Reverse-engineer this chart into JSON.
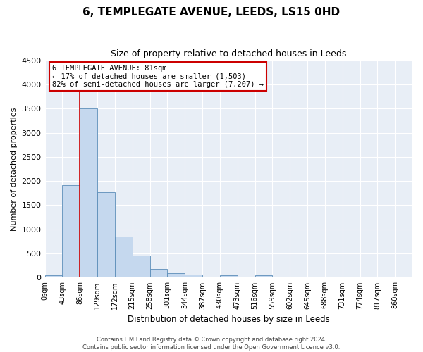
{
  "title": "6, TEMPLEGATE AVENUE, LEEDS, LS15 0HD",
  "subtitle": "Size of property relative to detached houses in Leeds",
  "xlabel": "Distribution of detached houses by size in Leeds",
  "ylabel": "Number of detached properties",
  "bar_color": "#c5d8ee",
  "bar_edge_color": "#5b8db8",
  "background_color": "#e8eef6",
  "grid_color": "#ffffff",
  "bin_labels": [
    "0sqm",
    "43sqm",
    "86sqm",
    "129sqm",
    "172sqm",
    "215sqm",
    "258sqm",
    "301sqm",
    "344sqm",
    "387sqm",
    "430sqm",
    "473sqm",
    "516sqm",
    "559sqm",
    "602sqm",
    "645sqm",
    "688sqm",
    "731sqm",
    "774sqm",
    "817sqm",
    "860sqm"
  ],
  "bar_heights": [
    50,
    1920,
    3500,
    1775,
    850,
    460,
    185,
    100,
    60,
    0,
    55,
    0,
    50,
    0,
    0,
    0,
    0,
    0,
    0,
    0,
    0
  ],
  "ylim": [
    0,
    4500
  ],
  "yticks": [
    0,
    500,
    1000,
    1500,
    2000,
    2500,
    3000,
    3500,
    4000,
    4500
  ],
  "vline_color": "#cc0000",
  "annotation_title": "6 TEMPLEGATE AVENUE: 81sqm",
  "annotation_line1": "← 17% of detached houses are smaller (1,503)",
  "annotation_line2": "82% of semi-detached houses are larger (7,207) →",
  "annotation_box_color": "#ffffff",
  "annotation_border_color": "#cc0000",
  "footer_line1": "Contains HM Land Registry data © Crown copyright and database right 2024.",
  "footer_line2": "Contains public sector information licensed under the Open Government Licence v3.0."
}
